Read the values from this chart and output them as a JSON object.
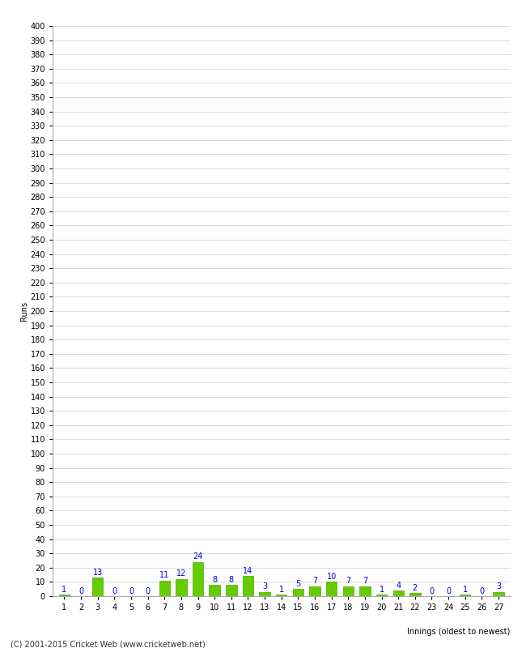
{
  "innings": [
    1,
    2,
    3,
    4,
    5,
    6,
    7,
    8,
    9,
    10,
    11,
    12,
    13,
    14,
    15,
    16,
    17,
    18,
    19,
    20,
    21,
    22,
    23,
    24,
    25,
    26,
    27
  ],
  "runs": [
    1,
    0,
    13,
    0,
    0,
    0,
    11,
    12,
    24,
    8,
    8,
    14,
    3,
    1,
    5,
    7,
    10,
    7,
    7,
    1,
    4,
    2,
    0,
    0,
    1,
    0,
    3
  ],
  "bar_color": "#66cc00",
  "bar_edge_color": "#44aa00",
  "label_color": "#0000cc",
  "xlabel": "Innings (oldest to newest)",
  "ylabel": "Runs",
  "ylim": [
    0,
    400
  ],
  "background_color": "#ffffff",
  "grid_color": "#cccccc",
  "footer": "(C) 2001-2015 Cricket Web (www.cricketweb.net)",
  "label_fontsize": 7,
  "axis_fontsize": 7,
  "title_fontsize": 9
}
